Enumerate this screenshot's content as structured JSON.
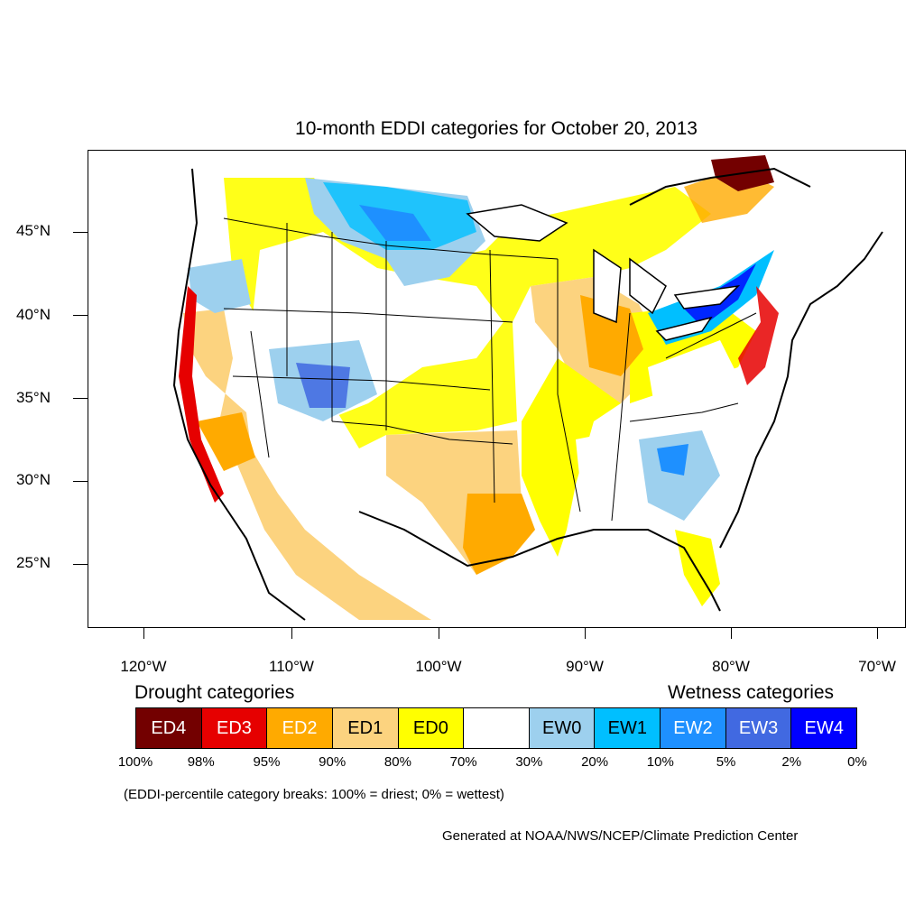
{
  "title": "10-month EDDI categories for October 20, 2013",
  "lat_labels": [
    "45°N",
    "40°N",
    "35°N",
    "30°N",
    "25°N"
  ],
  "lon_labels": [
    "120°W",
    "110°W",
    "100°W",
    "90°W",
    "80°W",
    "70°W"
  ],
  "legend": {
    "drought_heading": "Drought categories",
    "wetness_heading": "Wetness categories",
    "categories": [
      {
        "label": "ED4",
        "color": "#730000",
        "text_color": "#ffffff"
      },
      {
        "label": "ED3",
        "color": "#e60000",
        "text_color": "#ffffff"
      },
      {
        "label": "ED2",
        "color": "#ffaa00",
        "text_color": "#ffffff"
      },
      {
        "label": "ED1",
        "color": "#fcd37f",
        "text_color": "#000000"
      },
      {
        "label": "ED0",
        "color": "#ffff00",
        "text_color": "#000000"
      },
      {
        "label": "",
        "color": "#ffffff",
        "text_color": "#000000"
      },
      {
        "label": "EW0",
        "color": "#9dd0ee",
        "text_color": "#000000"
      },
      {
        "label": "EW1",
        "color": "#00bfff",
        "text_color": "#000000"
      },
      {
        "label": "EW2",
        "color": "#1e90ff",
        "text_color": "#ffffff"
      },
      {
        "label": "EW3",
        "color": "#4169e1",
        "text_color": "#ffffff"
      },
      {
        "label": "EW4",
        "color": "#0000ff",
        "text_color": "#ffffff"
      }
    ],
    "breaks": [
      "100%",
      "98%",
      "95%",
      "90%",
      "80%",
      "70%",
      "30%",
      "20%",
      "10%",
      "5%",
      "2%",
      "0%"
    ]
  },
  "note": "(EDDI-percentile category breaks: 100% = driest; 0% = wettest)",
  "credit": "Generated at NOAA/NWS/NCEP/Climate Prediction Center"
}
